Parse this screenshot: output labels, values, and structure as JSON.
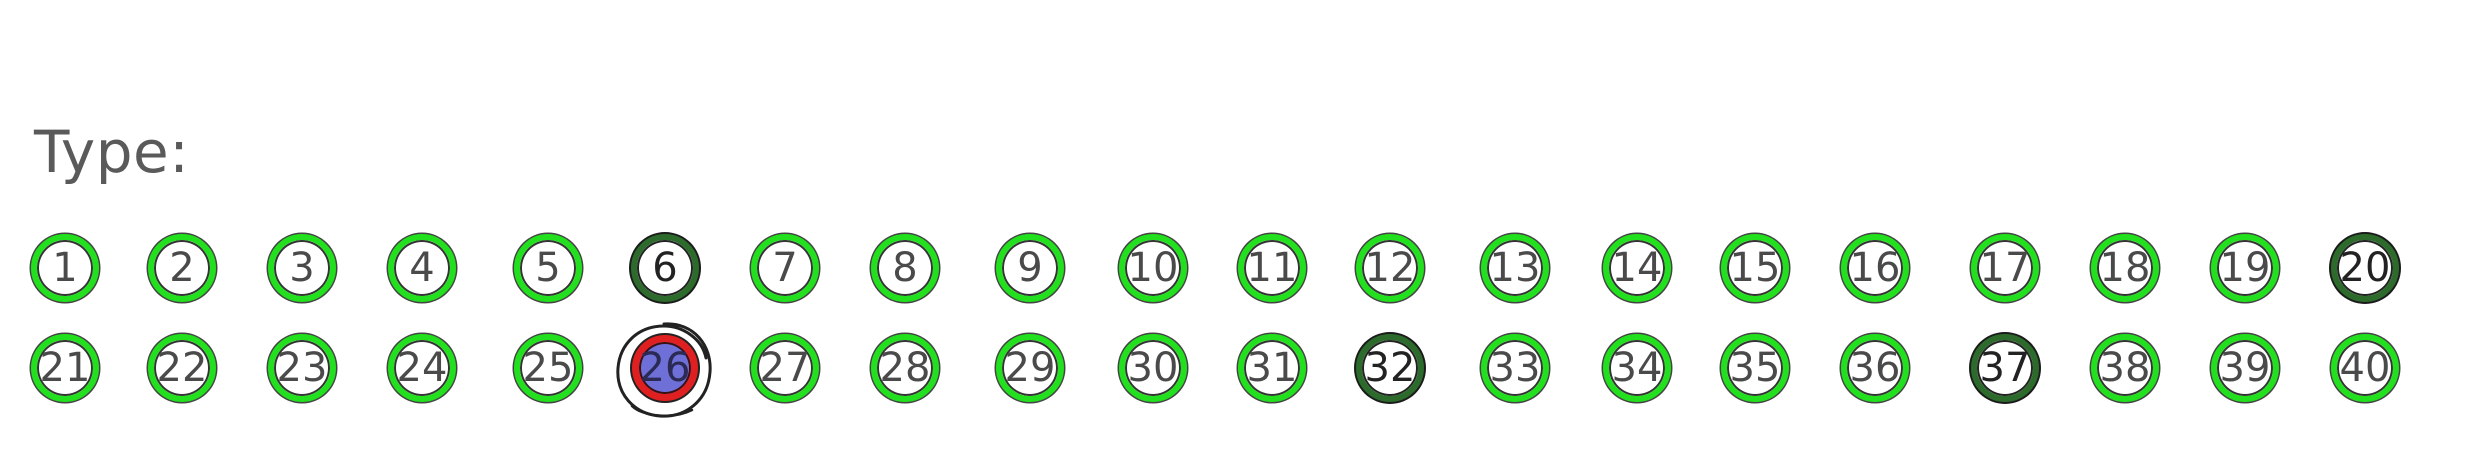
{
  "label": "Type:",
  "options": [
    {
      "value": "1",
      "style": "normal",
      "selected": false
    },
    {
      "value": "2",
      "style": "normal",
      "selected": false
    },
    {
      "value": "3",
      "style": "normal",
      "selected": false
    },
    {
      "value": "4",
      "style": "normal",
      "selected": false
    },
    {
      "value": "5",
      "style": "normal",
      "selected": false
    },
    {
      "value": "6",
      "style": "dark",
      "selected": false
    },
    {
      "value": "7",
      "style": "normal",
      "selected": false
    },
    {
      "value": "8",
      "style": "normal",
      "selected": false
    },
    {
      "value": "9",
      "style": "normal",
      "selected": false
    },
    {
      "value": "10",
      "style": "normal",
      "selected": false
    },
    {
      "value": "11",
      "style": "normal",
      "selected": false
    },
    {
      "value": "12",
      "style": "normal",
      "selected": false
    },
    {
      "value": "13",
      "style": "normal",
      "selected": false
    },
    {
      "value": "14",
      "style": "normal",
      "selected": false
    },
    {
      "value": "15",
      "style": "normal",
      "selected": false
    },
    {
      "value": "16",
      "style": "normal",
      "selected": false
    },
    {
      "value": "17",
      "style": "normal",
      "selected": false
    },
    {
      "value": "18",
      "style": "normal",
      "selected": false
    },
    {
      "value": "19",
      "style": "normal",
      "selected": false
    },
    {
      "value": "20",
      "style": "dark",
      "selected": false
    },
    {
      "value": "21",
      "style": "normal",
      "selected": false
    },
    {
      "value": "22",
      "style": "normal",
      "selected": false
    },
    {
      "value": "23",
      "style": "normal",
      "selected": false
    },
    {
      "value": "24",
      "style": "normal",
      "selected": false
    },
    {
      "value": "25",
      "style": "normal",
      "selected": false
    },
    {
      "value": "26",
      "style": "selected",
      "selected": true
    },
    {
      "value": "27",
      "style": "normal",
      "selected": false
    },
    {
      "value": "28",
      "style": "normal",
      "selected": false
    },
    {
      "value": "29",
      "style": "normal",
      "selected": false
    },
    {
      "value": "30",
      "style": "normal",
      "selected": false
    },
    {
      "value": "31",
      "style": "normal",
      "selected": false
    },
    {
      "value": "32",
      "style": "dark",
      "selected": false
    },
    {
      "value": "33",
      "style": "normal",
      "selected": false
    },
    {
      "value": "34",
      "style": "normal",
      "selected": false
    },
    {
      "value": "35",
      "style": "normal",
      "selected": false
    },
    {
      "value": "36",
      "style": "normal",
      "selected": false
    },
    {
      "value": "37",
      "style": "dark",
      "selected": false
    },
    {
      "value": "38",
      "style": "normal",
      "selected": false
    },
    {
      "value": "39",
      "style": "normal",
      "selected": false
    },
    {
      "value": "40",
      "style": "normal",
      "selected": false
    }
  ],
  "colors": {
    "ring": "#22e01e",
    "ring_dark": "#2c6b2c",
    "selected_ring": "#e02020",
    "selected_fill": "#6f6fd8",
    "text": "#4a4a4a"
  }
}
